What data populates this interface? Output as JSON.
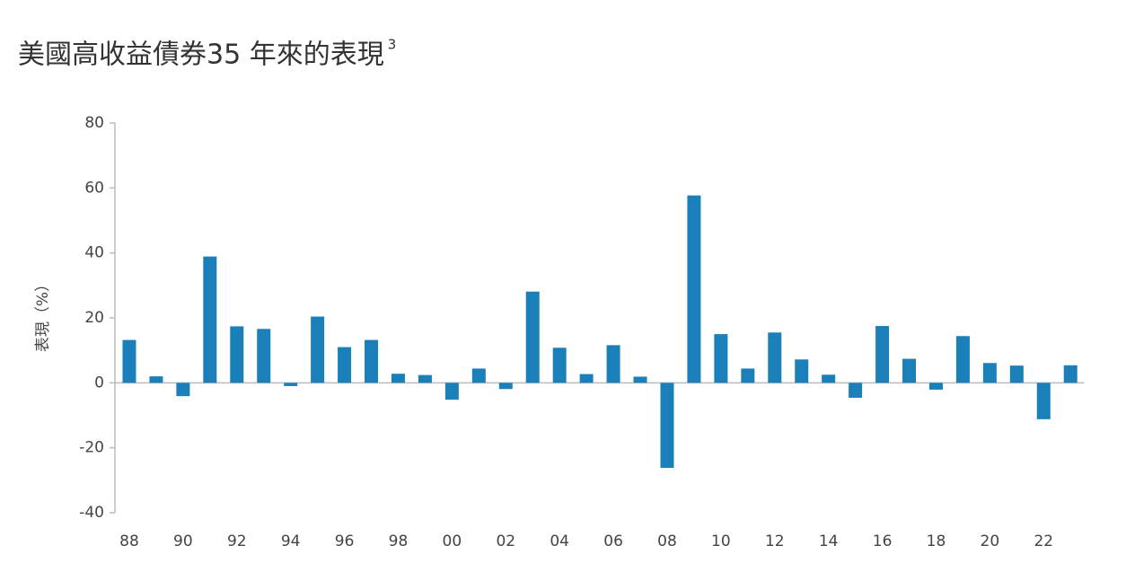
{
  "chart_data": {
    "type": "bar",
    "title": "美國高收益債券35 年來的表現",
    "title_superscript": "3",
    "y_label": "表現（%）",
    "categories": [
      "88",
      null,
      "90",
      null,
      "92",
      null,
      "94",
      null,
      "96",
      null,
      "98",
      null,
      "00",
      null,
      "02",
      null,
      "04",
      null,
      "06",
      null,
      "08",
      null,
      "10",
      null,
      "12",
      null,
      "14",
      null,
      "16",
      null,
      "18",
      null,
      "20",
      null,
      "22",
      null
    ],
    "values": [
      13.2,
      2,
      -4.1,
      38.9,
      17.4,
      16.6,
      -1,
      20.4,
      11,
      13.2,
      2.8,
      2.4,
      -5.2,
      4.4,
      -1.9,
      28.1,
      10.8,
      2.7,
      11.6,
      1.9,
      -26.2,
      57.7,
      15,
      4.4,
      15.5,
      7.2,
      2.5,
      -4.6,
      17.5,
      7.4,
      -2.1,
      14.4,
      6.1,
      5.3,
      -11.2,
      5.4
    ],
    "color": "#1b80b9",
    "ylim": [
      -40,
      80
    ],
    "yticks": [
      -40,
      -20,
      0,
      20,
      40,
      60,
      80
    ],
    "grid": false
  }
}
